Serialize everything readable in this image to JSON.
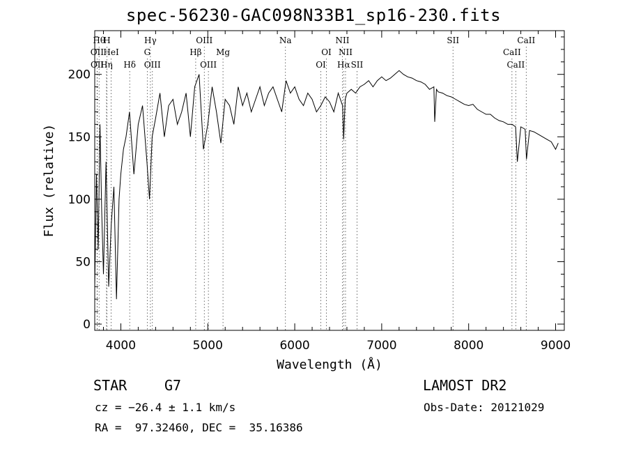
{
  "title": "spec-56230-GAC098N33B1_sp16-230.fits",
  "info": {
    "object_class": "STAR",
    "subclass": "G7",
    "survey": "LAMOST DR2",
    "cz": "cz = −26.4 ± 1.1 km/s",
    "obs_date": "Obs-Date: 20121029",
    "radec": "RA =  97.32460, DEC =  35.16386"
  },
  "chart_data": {
    "type": "line",
    "xlabel": "Wavelength (Å)",
    "ylabel": "Flux (relative)",
    "xlim": [
      3700,
      9100
    ],
    "ylim": [
      -5,
      235
    ],
    "x_ticks": [
      4000,
      5000,
      6000,
      7000,
      8000,
      9000
    ],
    "y_ticks": [
      0,
      50,
      100,
      150,
      200
    ],
    "grid": false,
    "series": [
      {
        "color": "#000000",
        "x": [
          3700,
          3720,
          3740,
          3760,
          3780,
          3800,
          3830,
          3860,
          3890,
          3920,
          3950,
          3980,
          4000,
          4030,
          4060,
          4100,
          4150,
          4200,
          4250,
          4300,
          4330,
          4360,
          4400,
          4450,
          4500,
          4550,
          4600,
          4650,
          4700,
          4750,
          4800,
          4850,
          4900,
          4950,
          5000,
          5050,
          5100,
          5150,
          5200,
          5250,
          5300,
          5350,
          5400,
          5450,
          5500,
          5550,
          5600,
          5650,
          5700,
          5750,
          5800,
          5850,
          5900,
          5950,
          6000,
          6050,
          6100,
          6150,
          6200,
          6250,
          6300,
          6350,
          6400,
          6450,
          6500,
          6550,
          6563,
          6580,
          6600,
          6650,
          6700,
          6750,
          6800,
          6850,
          6900,
          6950,
          7000,
          7050,
          7100,
          7150,
          7200,
          7250,
          7300,
          7350,
          7400,
          7450,
          7500,
          7550,
          7600,
          7610,
          7630,
          7650,
          7700,
          7750,
          7800,
          7850,
          7900,
          7950,
          8000,
          8050,
          8100,
          8150,
          8200,
          8250,
          8300,
          8350,
          8400,
          8450,
          8500,
          8540,
          8560,
          8600,
          8650,
          8665,
          8700,
          8750,
          8800,
          8850,
          8900,
          8950,
          9000,
          9030
        ],
        "y": [
          30,
          120,
          60,
          160,
          90,
          40,
          130,
          30,
          80,
          110,
          20,
          100,
          120,
          140,
          150,
          170,
          120,
          160,
          175,
          130,
          100,
          150,
          165,
          185,
          150,
          175,
          180,
          160,
          170,
          185,
          150,
          190,
          200,
          140,
          160,
          190,
          170,
          145,
          180,
          175,
          160,
          190,
          175,
          185,
          170,
          180,
          190,
          175,
          185,
          190,
          180,
          170,
          195,
          185,
          190,
          180,
          175,
          185,
          180,
          170,
          175,
          182,
          178,
          170,
          185,
          175,
          148,
          180,
          185,
          188,
          185,
          190,
          192,
          195,
          190,
          195,
          198,
          195,
          197,
          200,
          203,
          200,
          198,
          197,
          195,
          194,
          192,
          188,
          190,
          162,
          188,
          186,
          185,
          183,
          182,
          180,
          178,
          176,
          175,
          176,
          172,
          170,
          168,
          168,
          165,
          163,
          162,
          160,
          160,
          158,
          130,
          158,
          156,
          132,
          155,
          154,
          152,
          150,
          148,
          146,
          140,
          145
        ]
      }
    ],
    "line_markers": [
      {
        "label": "Hθ",
        "x": 3750,
        "row": 1
      },
      {
        "label": "H",
        "x": 3840,
        "row": 1
      },
      {
        "label": "Hγ",
        "x": 4340,
        "row": 1
      },
      {
        "label": "OIII",
        "x": 4960,
        "row": 1
      },
      {
        "label": "Na",
        "x": 5893,
        "row": 1
      },
      {
        "label": "NII",
        "x": 6548,
        "row": 1
      },
      {
        "label": "SII",
        "x": 7820,
        "row": 1
      },
      {
        "label": "CaII",
        "x": 8662,
        "row": 1
      },
      {
        "label": "OII",
        "x": 3727,
        "row": 2
      },
      {
        "label": "HeI",
        "x": 3889,
        "row": 2
      },
      {
        "label": "G",
        "x": 4304,
        "row": 2
      },
      {
        "label": "Hβ",
        "x": 4861,
        "row": 2
      },
      {
        "label": "Mg",
        "x": 5175,
        "row": 2
      },
      {
        "label": "OI",
        "x": 6364,
        "row": 2
      },
      {
        "label": "NII",
        "x": 6584,
        "row": 2
      },
      {
        "label": "CaII",
        "x": 8498,
        "row": 2
      },
      {
        "label": "OII",
        "x": 3729,
        "row": 3
      },
      {
        "label": "Hη",
        "x": 3835,
        "row": 3
      },
      {
        "label": "Hδ",
        "x": 4102,
        "row": 3
      },
      {
        "label": "OIII",
        "x": 4363,
        "row": 3
      },
      {
        "label": "OIII",
        "x": 5007,
        "row": 3
      },
      {
        "label": "OI",
        "x": 6300,
        "row": 3
      },
      {
        "label": "Hα",
        "x": 6563,
        "row": 3
      },
      {
        "label": "SII",
        "x": 6716,
        "row": 3
      },
      {
        "label": "CaII",
        "x": 8542,
        "row": 3
      }
    ]
  }
}
